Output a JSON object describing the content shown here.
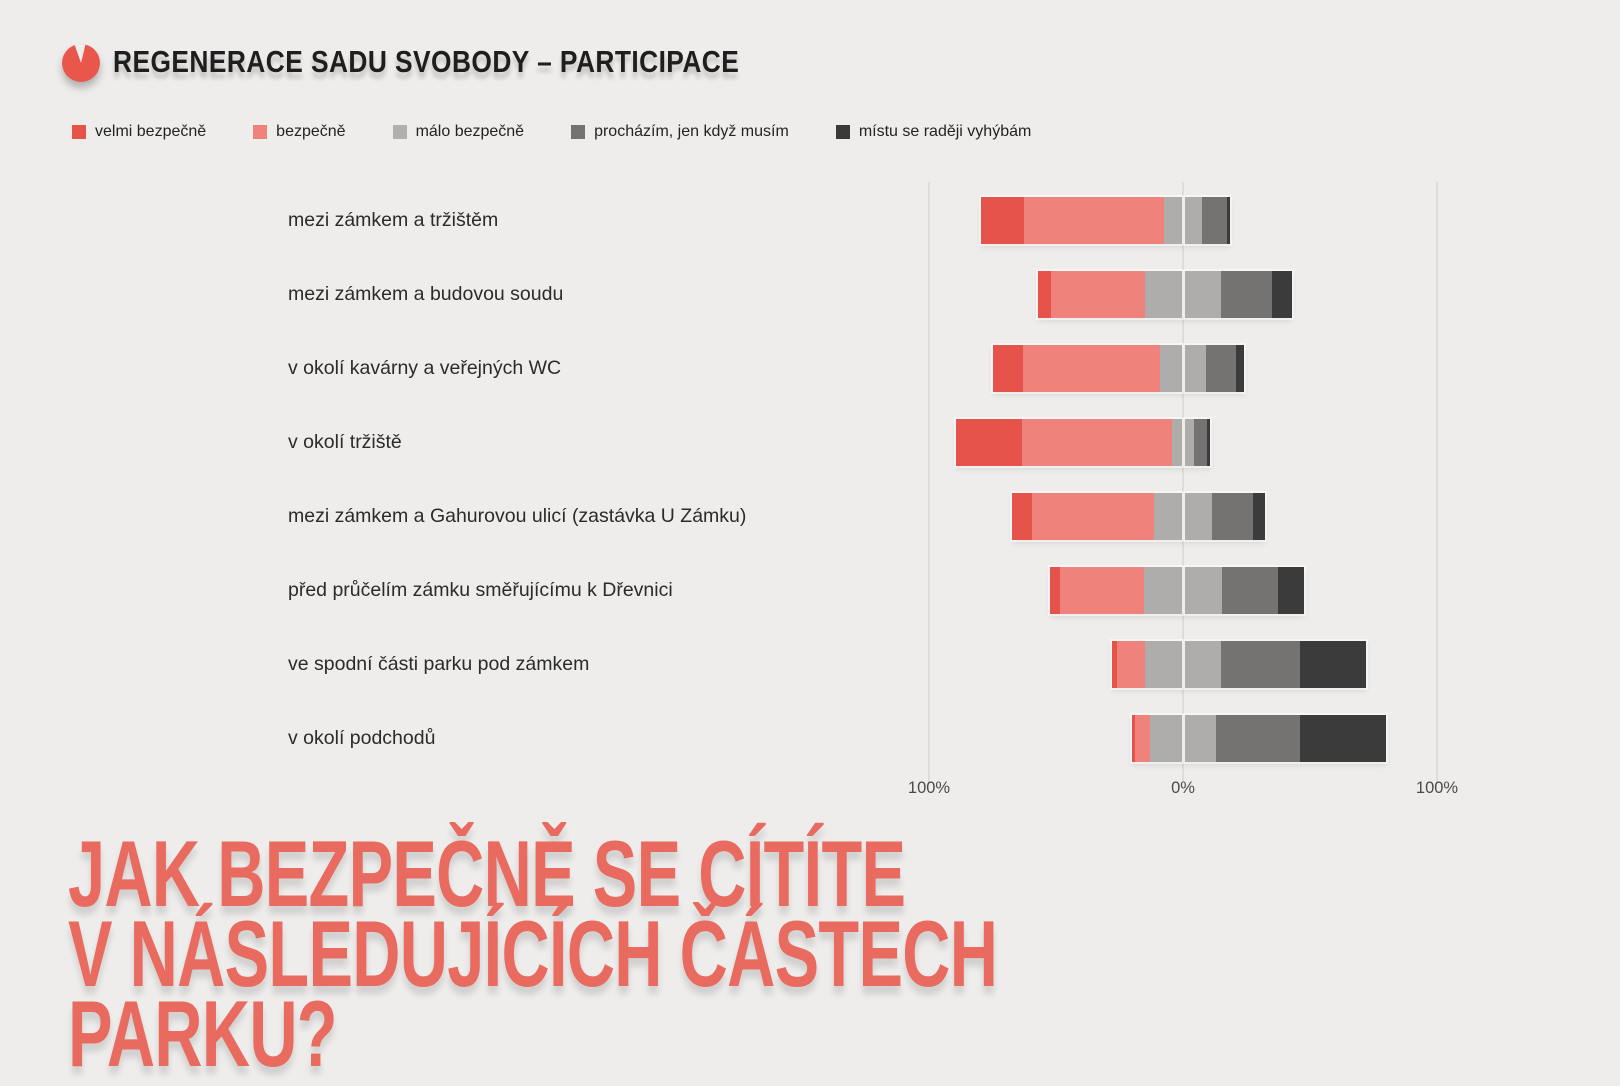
{
  "header": {
    "title": "REGENERACE SADU SVOBODY – PARTICIPACE",
    "logo_color": "#e8564c"
  },
  "legend": [
    {
      "label": "velmi bezpečně",
      "color": "#e5534b"
    },
    {
      "label": "bezpečně",
      "color": "#f0827c"
    },
    {
      "label": "málo bezpečně",
      "color": "#b0afae"
    },
    {
      "label": "procházím, jen když musím",
      "color": "#747372"
    },
    {
      "label": "místu se raději vyhýbám",
      "color": "#3a3a39"
    }
  ],
  "chart_data": {
    "type": "bar",
    "variant": "diverging-stacked-horizontal",
    "title": "JAK BEZPEČNĚ SE CÍTÍTE\nV NÁSLEDUJÍCÍCH ČÁSTECH PARKU?",
    "title_color": "#e96a5f",
    "legend_position": "top",
    "axis": {
      "left_label": "100%",
      "center_label": "0%",
      "right_label": "100%"
    },
    "note": "middle category (málo bezpečně) straddles the 0% line; values in percent",
    "series_names": [
      "velmi bezpečně",
      "bezpečně",
      "málo bezpečně",
      "procházím, jen když musím",
      "místu se raději vyhýbám"
    ],
    "colors": [
      "#e5534b",
      "#f0827c",
      "#aeadac",
      "#747372",
      "#3c3b3b"
    ],
    "categories": [
      "mezi zámkem a tržištěm",
      "mezi zámkem a budovou soudu",
      "v okolí kavárny a veřejných WC",
      "v okolí tržiště",
      "mezi zámkem a Gahurovou ulicí (zastávka U Zámku)",
      "před průčelím zámku směřujícímu k Dřevnici",
      "ve spodní části parku pod zámkem",
      "v okolí podchodů"
    ],
    "values": [
      [
        17,
        55,
        15,
        10,
        1
      ],
      [
        5,
        37,
        30,
        20,
        8
      ],
      [
        12,
        54,
        18,
        12,
        3
      ],
      [
        26,
        59,
        9,
        5,
        1
      ],
      [
        8,
        48,
        23,
        16,
        5
      ],
      [
        4,
        33,
        31,
        22,
        10
      ],
      [
        2,
        11,
        30,
        31,
        26
      ],
      [
        1,
        6,
        26,
        33,
        34
      ]
    ]
  }
}
